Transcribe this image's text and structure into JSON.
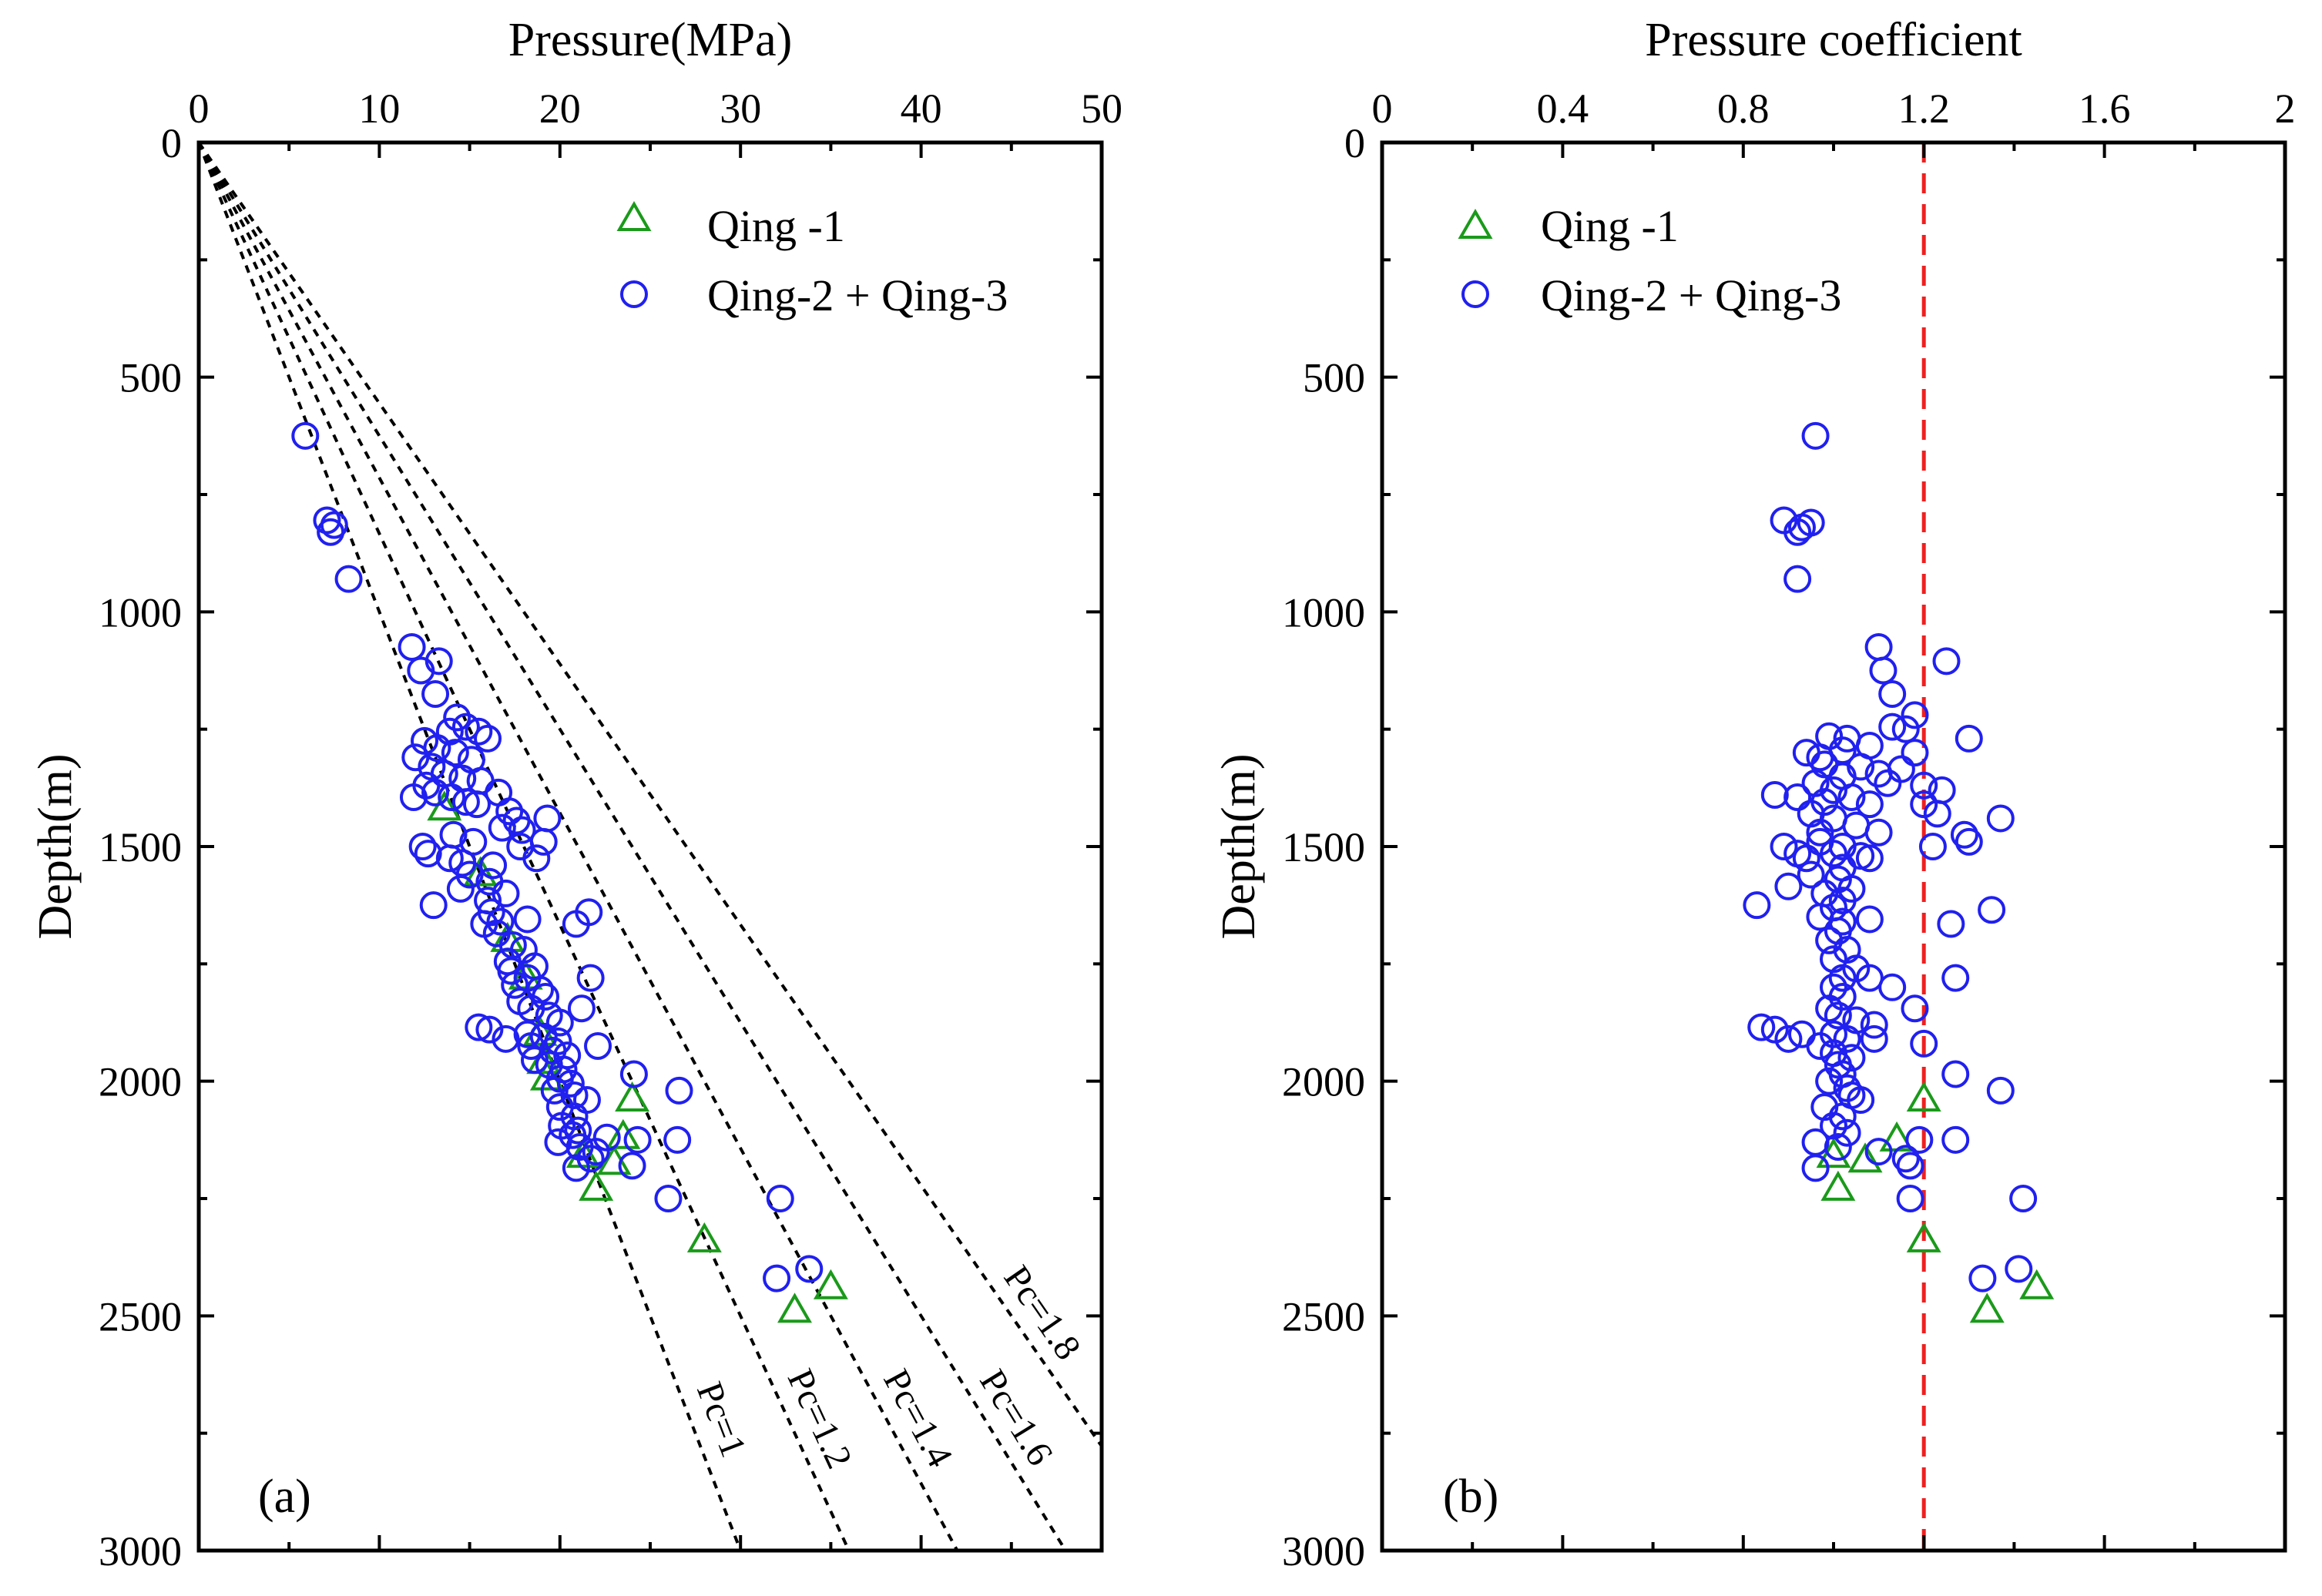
{
  "colors": {
    "qing1": "#1a9a1a",
    "qing23": "#2020f0",
    "pc_curve": "#000000",
    "reference_line": "#ee2020",
    "axis": "#000000"
  },
  "chart_data": [
    {
      "panel_label": "(a)",
      "type": "scatter",
      "xlabel": "Pressure(MPa)",
      "ylabel": "Depth(m)",
      "xlim": [
        0,
        50
      ],
      "ylim": [
        0,
        3000
      ],
      "y_inverted": true,
      "x_axis_position": "top",
      "xticks": [
        0,
        10,
        20,
        30,
        40,
        50
      ],
      "xtick_labels": [
        "0",
        "10",
        "20",
        "30",
        "40",
        "50"
      ],
      "yticks": [
        0,
        500,
        1000,
        1500,
        2000,
        2500,
        3000
      ],
      "ytick_labels": [
        "0",
        "500",
        "1000",
        "1500",
        "2000",
        "2500",
        "3000"
      ],
      "legend_position": "top-right",
      "series": [
        {
          "name": "Qing -1",
          "marker": "triangle",
          "points": [
            [
              13.6,
              1420
            ],
            [
              15.6,
              1560
            ],
            [
              17.1,
              1700
            ],
            [
              18.1,
              1780
            ],
            [
              18.9,
              1900
            ],
            [
              19.1,
              1960
            ],
            [
              19.3,
              1995
            ],
            [
              24.0,
              2040
            ],
            [
              23.5,
              2120
            ],
            [
              23.0,
              2175
            ],
            [
              21.3,
              2160
            ],
            [
              22.0,
              2230
            ],
            [
              28.0,
              2340
            ],
            [
              35.0,
              2440
            ],
            [
              33.0,
              2490
            ]
          ]
        },
        {
          "name": "Qing-2 + Qing-3",
          "marker": "circle",
          "points": [
            [
              5.9,
              625
            ],
            [
              7.1,
              805
            ],
            [
              7.5,
              815
            ],
            [
              7.3,
              830
            ],
            [
              8.3,
              930
            ],
            [
              11.8,
              1075
            ],
            [
              12.3,
              1125
            ],
            [
              13.3,
              1105
            ],
            [
              13.1,
              1175
            ],
            [
              14.3,
              1225
            ],
            [
              14.8,
              1245
            ],
            [
              13.9,
              1255
            ],
            [
              15.5,
              1255
            ],
            [
              16.0,
              1270
            ],
            [
              12.5,
              1275
            ],
            [
              13.2,
              1290
            ],
            [
              14.2,
              1300
            ],
            [
              15.1,
              1315
            ],
            [
              12.0,
              1310
            ],
            [
              12.9,
              1330
            ],
            [
              13.6,
              1345
            ],
            [
              14.6,
              1355
            ],
            [
              15.6,
              1360
            ],
            [
              12.6,
              1370
            ],
            [
              13.1,
              1385
            ],
            [
              14.0,
              1395
            ],
            [
              11.9,
              1395
            ],
            [
              14.8,
              1405
            ],
            [
              15.4,
              1410
            ],
            [
              16.6,
              1385
            ],
            [
              17.2,
              1425
            ],
            [
              17.6,
              1445
            ],
            [
              19.3,
              1440
            ],
            [
              16.8,
              1460
            ],
            [
              17.9,
              1465
            ],
            [
              14.1,
              1475
            ],
            [
              15.2,
              1490
            ],
            [
              12.4,
              1500
            ],
            [
              17.8,
              1500
            ],
            [
              19.1,
              1490
            ],
            [
              12.7,
              1515
            ],
            [
              13.9,
              1525
            ],
            [
              14.6,
              1535
            ],
            [
              16.3,
              1540
            ],
            [
              18.7,
              1525
            ],
            [
              15.0,
              1560
            ],
            [
              14.5,
              1590
            ],
            [
              16.1,
              1575
            ],
            [
              17.0,
              1600
            ],
            [
              16.0,
              1615
            ],
            [
              13.0,
              1625
            ],
            [
              16.2,
              1640
            ],
            [
              16.7,
              1660
            ],
            [
              18.2,
              1655
            ],
            [
              21.6,
              1640
            ],
            [
              15.8,
              1665
            ],
            [
              20.9,
              1665
            ],
            [
              16.5,
              1685
            ],
            [
              17.4,
              1710
            ],
            [
              18.0,
              1720
            ],
            [
              17.1,
              1745
            ],
            [
              18.6,
              1755
            ],
            [
              17.3,
              1765
            ],
            [
              18.2,
              1780
            ],
            [
              21.7,
              1780
            ],
            [
              17.5,
              1795
            ],
            [
              18.9,
              1805
            ],
            [
              19.2,
              1820
            ],
            [
              17.8,
              1830
            ],
            [
              18.4,
              1845
            ],
            [
              21.2,
              1845
            ],
            [
              19.4,
              1860
            ],
            [
              20.0,
              1875
            ],
            [
              15.5,
              1885
            ],
            [
              16.1,
              1890
            ],
            [
              18.2,
              1900
            ],
            [
              19.1,
              1905
            ],
            [
              19.9,
              1915
            ],
            [
              17.0,
              1910
            ],
            [
              22.1,
              1925
            ],
            [
              18.4,
              1925
            ],
            [
              19.6,
              1935
            ],
            [
              20.4,
              1945
            ],
            [
              18.6,
              1955
            ],
            [
              19.4,
              1965
            ],
            [
              20.2,
              1975
            ],
            [
              24.1,
              1985
            ],
            [
              20.0,
              1995
            ],
            [
              20.6,
              2005
            ],
            [
              19.7,
              2020
            ],
            [
              26.6,
              2020
            ],
            [
              20.8,
              2030
            ],
            [
              21.5,
              2040
            ],
            [
              20.0,
              2055
            ],
            [
              20.8,
              2075
            ],
            [
              20.1,
              2095
            ],
            [
              21.0,
              2105
            ],
            [
              20.7,
              2115
            ],
            [
              22.6,
              2120
            ],
            [
              24.3,
              2125
            ],
            [
              26.5,
              2125
            ],
            [
              19.9,
              2130
            ],
            [
              21.1,
              2140
            ],
            [
              22.0,
              2150
            ],
            [
              21.7,
              2165
            ],
            [
              24.0,
              2180
            ],
            [
              20.9,
              2185
            ],
            [
              26.0,
              2250
            ],
            [
              32.2,
              2250
            ],
            [
              33.8,
              2400
            ],
            [
              32.0,
              2420
            ]
          ]
        }
      ],
      "reference_curves": [
        {
          "label": "Pc=1",
          "pc": 1.0
        },
        {
          "label": "Pc=1.2",
          "pc": 1.2
        },
        {
          "label": "Pc=1.4",
          "pc": 1.4
        },
        {
          "label": "Pc=1.6",
          "pc": 1.6
        },
        {
          "label": "Pc=1.8",
          "pc": 1.8
        }
      ]
    },
    {
      "panel_label": "(b)",
      "type": "scatter",
      "xlabel": "Pressure coefficient",
      "ylabel": "Depth(m)",
      "xlim": [
        0,
        2
      ],
      "ylim": [
        0,
        3000
      ],
      "y_inverted": true,
      "x_axis_position": "top",
      "xticks": [
        0,
        0.4,
        0.8,
        1.2,
        1.6,
        2
      ],
      "xtick_labels": [
        "0",
        "0.4",
        "0.8",
        "1.2",
        "1.6",
        "2"
      ],
      "yticks": [
        0,
        500,
        1000,
        1500,
        2000,
        2500,
        3000
      ],
      "ytick_labels": [
        "0",
        "500",
        "1000",
        "1500",
        "2000",
        "2500",
        "3000"
      ],
      "legend_position": "top-left",
      "reference_line": {
        "x": 1.2,
        "style": "dashed"
      },
      "series": [
        {
          "name": "Qing -1",
          "marker": "triangle",
          "points": [
            [
              1.2,
              2040
            ],
            [
              1.14,
              2125
            ],
            [
              1.07,
              2170
            ],
            [
              1.0,
              2160
            ],
            [
              1.01,
              2230
            ],
            [
              1.2,
              2340
            ],
            [
              1.45,
              2440
            ],
            [
              1.34,
              2490
            ]
          ]
        },
        {
          "name": "Qing-2 + Qing-3",
          "marker": "circle",
          "points": [
            [
              0.96,
              625
            ],
            [
              0.89,
              805
            ],
            [
              0.95,
              810
            ],
            [
              0.93,
              820
            ],
            [
              0.92,
              830
            ],
            [
              0.92,
              930
            ],
            [
              1.1,
              1075
            ],
            [
              1.11,
              1125
            ],
            [
              1.13,
              1175
            ],
            [
              1.25,
              1105
            ],
            [
              1.18,
              1220
            ],
            [
              1.16,
              1250
            ],
            [
              1.3,
              1270
            ],
            [
              1.13,
              1245
            ],
            [
              0.99,
              1265
            ],
            [
              1.03,
              1270
            ],
            [
              1.08,
              1285
            ],
            [
              0.97,
              1310
            ],
            [
              1.02,
              1295
            ],
            [
              1.18,
              1300
            ],
            [
              0.94,
              1300
            ],
            [
              0.98,
              1325
            ],
            [
              1.06,
              1330
            ],
            [
              1.15,
              1335
            ],
            [
              1.1,
              1345
            ],
            [
              1.02,
              1350
            ],
            [
              0.96,
              1365
            ],
            [
              1.12,
              1365
            ],
            [
              1.2,
              1370
            ],
            [
              1.24,
              1380
            ],
            [
              1.0,
              1380
            ],
            [
              0.92,
              1395
            ],
            [
              0.87,
              1390
            ],
            [
              1.04,
              1395
            ],
            [
              0.98,
              1405
            ],
            [
              1.08,
              1410
            ],
            [
              1.2,
              1410
            ],
            [
              1.23,
              1430
            ],
            [
              1.37,
              1440
            ],
            [
              0.95,
              1430
            ],
            [
              1.0,
              1440
            ],
            [
              1.05,
              1455
            ],
            [
              0.97,
              1470
            ],
            [
              1.1,
              1470
            ],
            [
              1.29,
              1475
            ],
            [
              1.3,
              1490
            ],
            [
              1.22,
              1500
            ],
            [
              0.97,
              1490
            ],
            [
              1.02,
              1500
            ],
            [
              0.89,
              1500
            ],
            [
              0.92,
              1515
            ],
            [
              1.0,
              1515
            ],
            [
              1.06,
              1520
            ],
            [
              1.08,
              1525
            ],
            [
              0.94,
              1525
            ],
            [
              1.02,
              1545
            ],
            [
              0.95,
              1560
            ],
            [
              1.01,
              1570
            ],
            [
              0.9,
              1585
            ],
            [
              1.04,
              1590
            ],
            [
              0.98,
              1600
            ],
            [
              1.02,
              1615
            ],
            [
              0.83,
              1625
            ],
            [
              1.0,
              1630
            ],
            [
              1.35,
              1635
            ],
            [
              0.97,
              1650
            ],
            [
              1.02,
              1660
            ],
            [
              1.08,
              1655
            ],
            [
              1.26,
              1665
            ],
            [
              1.01,
              1680
            ],
            [
              0.99,
              1700
            ],
            [
              1.03,
              1720
            ],
            [
              1.0,
              1740
            ],
            [
              1.05,
              1760
            ],
            [
              1.02,
              1780
            ],
            [
              1.08,
              1780
            ],
            [
              1.27,
              1780
            ],
            [
              1.0,
              1800
            ],
            [
              1.13,
              1800
            ],
            [
              1.02,
              1820
            ],
            [
              0.99,
              1845
            ],
            [
              1.18,
              1845
            ],
            [
              1.01,
              1860
            ],
            [
              1.05,
              1870
            ],
            [
              1.09,
              1880
            ],
            [
              0.84,
              1885
            ],
            [
              0.87,
              1890
            ],
            [
              0.93,
              1900
            ],
            [
              1.0,
              1900
            ],
            [
              1.03,
              1910
            ],
            [
              0.9,
              1910
            ],
            [
              1.09,
              1910
            ],
            [
              1.2,
              1920
            ],
            [
              0.97,
              1925
            ],
            [
              1.0,
              1940
            ],
            [
              1.04,
              1950
            ],
            [
              1.01,
              1965
            ],
            [
              1.27,
              1985
            ],
            [
              1.02,
              1985
            ],
            [
              0.99,
              2000
            ],
            [
              1.03,
              2015
            ],
            [
              1.37,
              2020
            ],
            [
              1.04,
              2030
            ],
            [
              1.06,
              2040
            ],
            [
              0.98,
              2055
            ],
            [
              1.02,
              2075
            ],
            [
              1.0,
              2095
            ],
            [
              1.03,
              2110
            ],
            [
              1.19,
              2125
            ],
            [
              1.27,
              2125
            ],
            [
              0.96,
              2130
            ],
            [
              1.01,
              2140
            ],
            [
              1.1,
              2150
            ],
            [
              1.16,
              2165
            ],
            [
              1.17,
              2180
            ],
            [
              0.96,
              2185
            ],
            [
              1.17,
              2250
            ],
            [
              1.42,
              2250
            ],
            [
              1.41,
              2400
            ],
            [
              1.33,
              2420
            ]
          ]
        }
      ]
    }
  ]
}
